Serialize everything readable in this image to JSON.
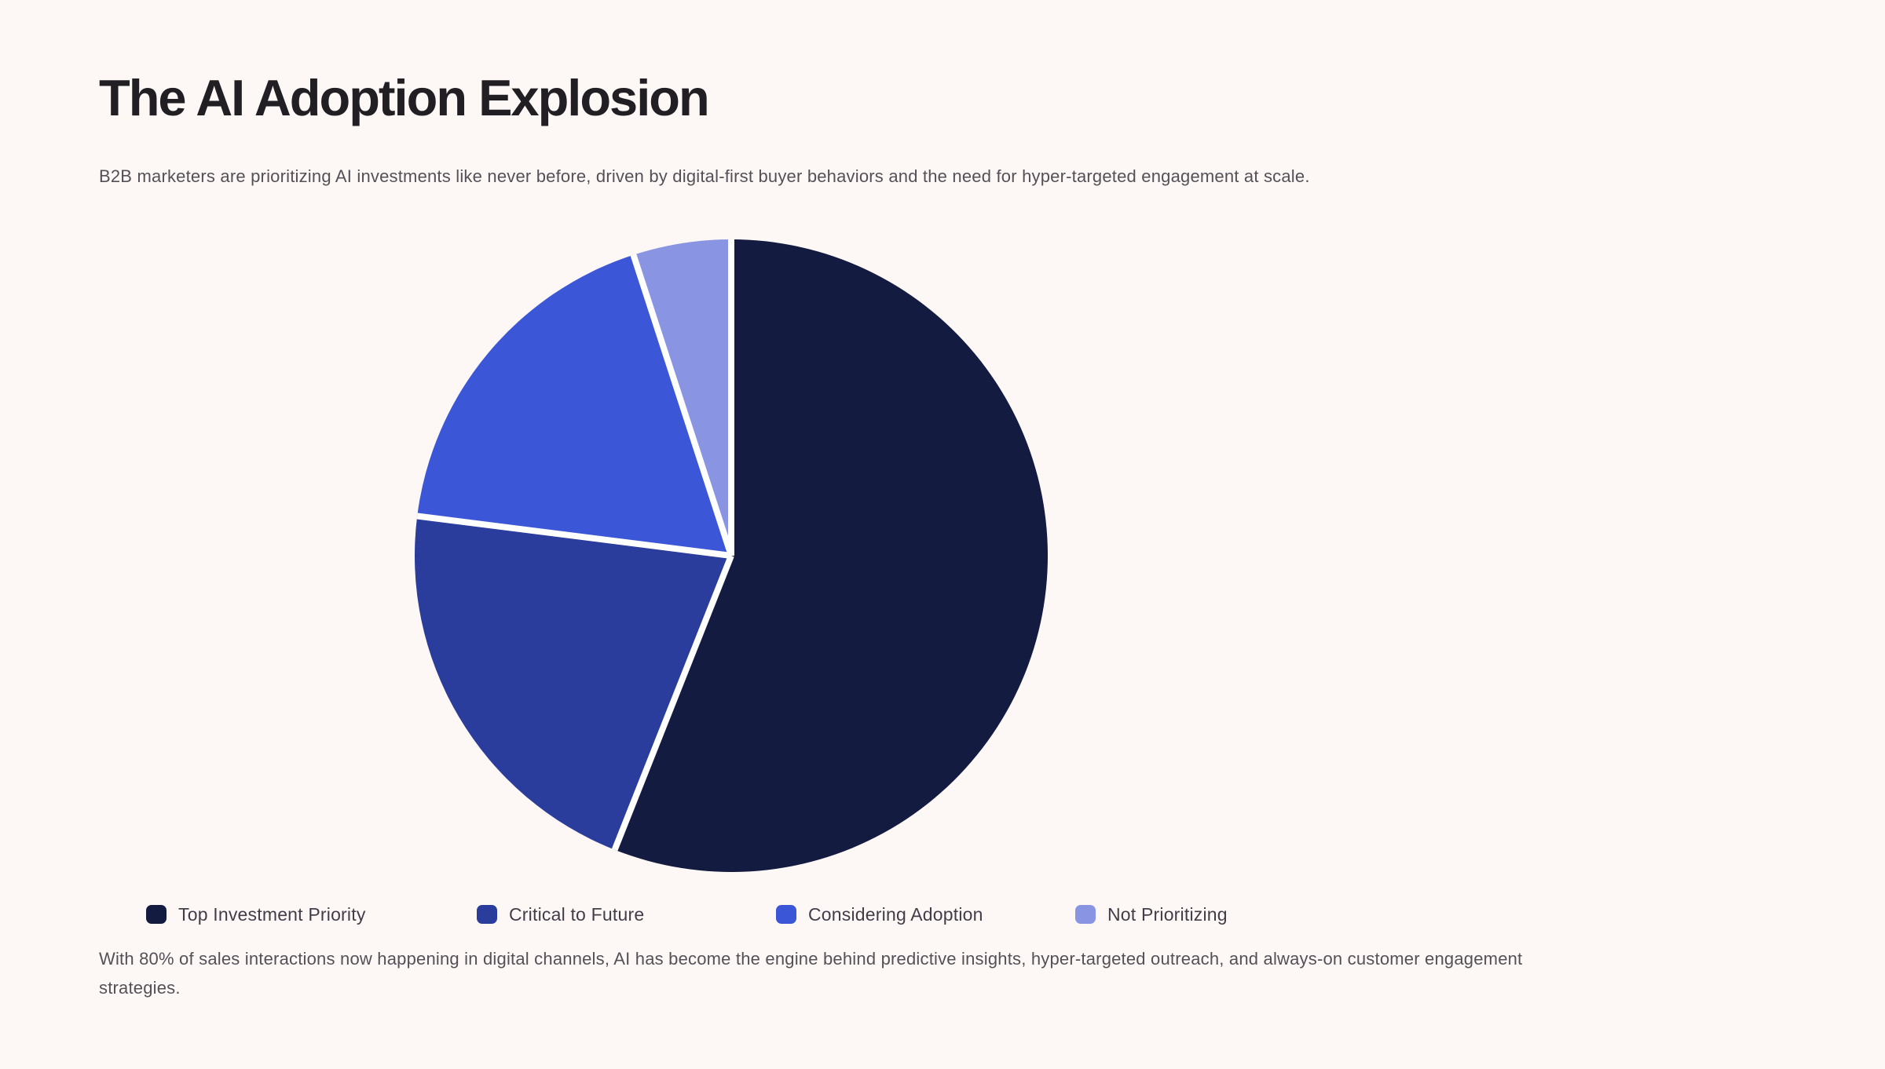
{
  "page": {
    "background_color": "#fdf8f5",
    "text_color": "#545058",
    "title_color": "#211f23"
  },
  "header": {
    "title": "The AI Adoption Explosion",
    "subtitle": "B2B marketers are prioritizing AI investments like never before, driven by digital-first buyer behaviors and the need for hyper-targeted engagement at scale."
  },
  "chart_data": {
    "type": "pie",
    "title": "The AI Adoption Explosion",
    "categories": [
      "Top Investment Priority",
      "Critical to Future",
      "Considering Adoption",
      "Not Prioritizing"
    ],
    "values": [
      56,
      21,
      18,
      5
    ],
    "unit": "percent",
    "colors": [
      "#141b40",
      "#2a3c9c",
      "#3b57d8",
      "#8995e3"
    ],
    "start_angle_deg": 0,
    "direction": "clockwise",
    "separator_color": "#ffffff",
    "separator_width": 8,
    "data_labels": "none",
    "legend_position": "bottom"
  },
  "footer": {
    "lines": [
      "With 80% of sales interactions now happening in digital channels, AI has become the engine behind predictive insights, hyper-targeted outreach, and always-on customer engagement",
      "strategies."
    ]
  }
}
